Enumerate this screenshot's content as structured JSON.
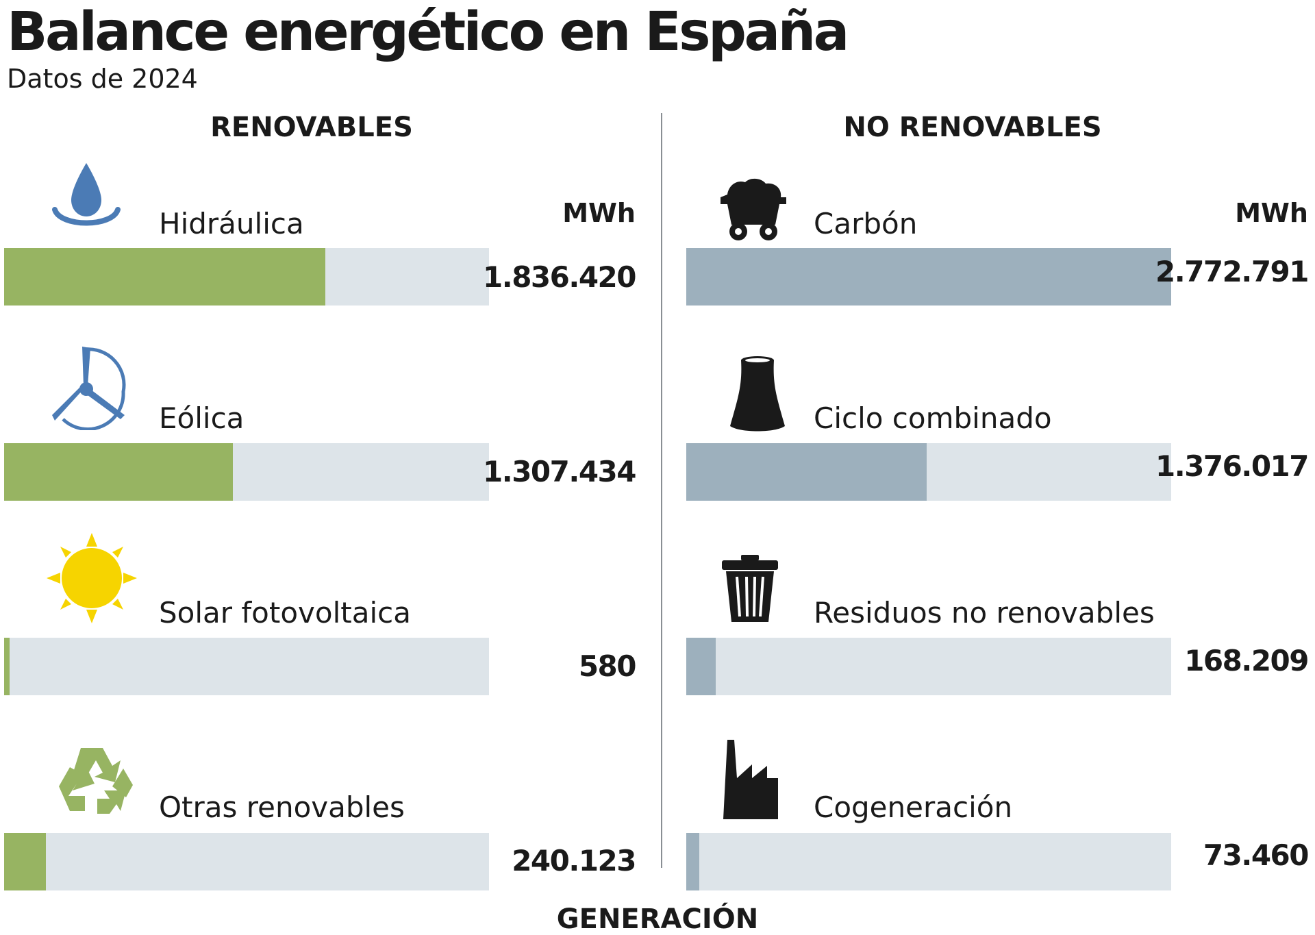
{
  "title": "Balance energético en España",
  "subtitle": "Datos de 2024",
  "footer_partial": "GENERACIÓN",
  "colors": {
    "renovables": "#97b462",
    "no_renovables": "#9db0bd",
    "track": "#dde4e9"
  },
  "chart_data": [
    {
      "type": "bar",
      "title": "RENOVABLES",
      "unit": "MWh",
      "categories": [
        "Hidráulica",
        "Eólica",
        "Solar fotovoltaica",
        "Otras renovables"
      ],
      "values": [
        1836420,
        1307434,
        580,
        240123
      ],
      "value_labels": [
        "1.836.420",
        "1.307.434",
        "580",
        "240.123"
      ],
      "icons": [
        "water-drop-icon",
        "wind-turbine-icon",
        "sun-icon",
        "recycle-icon"
      ]
    },
    {
      "type": "bar",
      "title": "NO RENOVABLES",
      "unit": "MWh",
      "categories": [
        "Carbón",
        "Ciclo combinado",
        "Residuos no renovables",
        "Cogeneración"
      ],
      "values": [
        2772791,
        1376017,
        168209,
        73460
      ],
      "value_labels": [
        "2.772.791",
        "1.376.017",
        "168.209",
        "73.460"
      ],
      "icons": [
        "coal-cart-icon",
        "cooling-tower-icon",
        "trash-bin-icon",
        "factory-icon"
      ]
    }
  ]
}
